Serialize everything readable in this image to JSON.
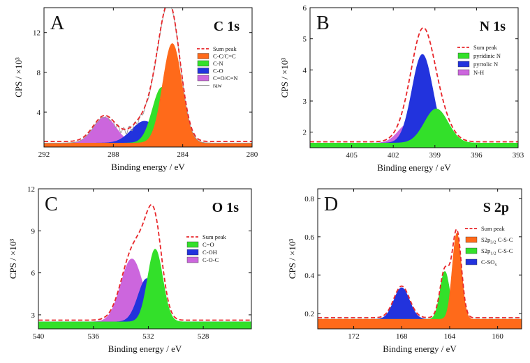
{
  "chart_data": [
    {
      "type": "line",
      "letter": "A",
      "title": "C 1s",
      "xlabel": "Binding energy / eV",
      "ylabel": "CPS / ×10³",
      "xlim": [
        292,
        280
      ],
      "ylim": [
        0.5,
        14.5
      ],
      "xticks": [
        "292",
        "288",
        "284",
        "280"
      ],
      "xtick_values": [
        292,
        288,
        284,
        280
      ],
      "yticks": [
        "4",
        "8",
        "12"
      ],
      "ytick_values": [
        4,
        8,
        12
      ],
      "baseline": 0.9,
      "series": [
        {
          "name": "Sum peak",
          "kind": "sum",
          "color": "#e8262a"
        },
        {
          "name": "C-C/C=C",
          "color": "#ff6a1a",
          "center": 284.6,
          "amp": 10.0
        },
        {
          "name": "C-N",
          "color": "#33e02a",
          "center": 285.2,
          "amp": 5.6
        },
        {
          "name": "C-O",
          "color": "#2233dd",
          "center": 286.2,
          "amp": 2.2
        },
        {
          "name": "C=O/C=N",
          "color": "#cc66dd",
          "center": 288.5,
          "amp": 2.6
        },
        {
          "name": "raw",
          "kind": "raw",
          "color": "#999999"
        }
      ],
      "legend": "right",
      "grid": false
    },
    {
      "type": "line",
      "letter": "B",
      "title": "N 1s",
      "xlabel": "Binding energy / eV",
      "ylabel": "CPS / ×10³",
      "xlim": [
        408,
        393
      ],
      "ylim": [
        1.5,
        6
      ],
      "xticks": [
        "405",
        "402",
        "399",
        "396",
        "393"
      ],
      "xtick_values": [
        405,
        402,
        399,
        396,
        393
      ],
      "yticks": [
        "2",
        "3",
        "4",
        "5",
        "6"
      ],
      "ytick_values": [
        2,
        3,
        4,
        5,
        6
      ],
      "baseline": 1.65,
      "series": [
        {
          "name": "Sum peak",
          "kind": "sum",
          "color": "#e8262a"
        },
        {
          "name": "pyridinic N",
          "color": "#33e02a",
          "center": 398.9,
          "amp": 1.1
        },
        {
          "name": "pyrrolic N",
          "color": "#2233dd",
          "center": 399.9,
          "amp": 2.85
        },
        {
          "name": "N-H",
          "color": "#cc66dd",
          "center": 400.9,
          "amp": 0.62
        }
      ],
      "legend": "top-right",
      "grid": false
    },
    {
      "type": "line",
      "letter": "C",
      "title": "O 1s",
      "xlabel": "Binding energy / eV",
      "ylabel": "CPS / ×10³",
      "xlim": [
        540,
        524.5
      ],
      "ylim": [
        2,
        12
      ],
      "xticks": [
        "540",
        "536",
        "532",
        "528"
      ],
      "xtick_values": [
        540,
        536,
        532,
        528
      ],
      "yticks": [
        "3",
        "6",
        "9",
        "12"
      ],
      "ytick_values": [
        3,
        6,
        9,
        12
      ],
      "baseline": 2.5,
      "series": [
        {
          "name": "Sum peak",
          "kind": "sum",
          "color": "#e8262a"
        },
        {
          "name": "C=O",
          "color": "#33e02a",
          "center": 531.5,
          "amp": 5.2
        },
        {
          "name": "C-OH",
          "color": "#2233dd",
          "center": 532.1,
          "amp": 3.1
        },
        {
          "name": "C-O-C",
          "color": "#cc66dd",
          "center": 533.2,
          "amp": 4.5
        }
      ],
      "legend": "right",
      "grid": false
    },
    {
      "type": "line",
      "letter": "D",
      "title": "S 2p",
      "xlabel": "Binding energy / eV",
      "ylabel": "CPS / ×10³",
      "xlim": [
        175,
        158
      ],
      "ylim": [
        0.12,
        0.85
      ],
      "xticks": [
        "172",
        "168",
        "164",
        "160"
      ],
      "xtick_values": [
        172,
        168,
        164,
        160
      ],
      "yticks": [
        "0.2",
        "0.4",
        "0.6",
        "0.8"
      ],
      "ytick_values": [
        0.2,
        0.4,
        0.6,
        0.8
      ],
      "baseline": 0.17,
      "series": [
        {
          "name": "Sum peak",
          "kind": "sum",
          "color": "#e8262a"
        },
        {
          "name": "S2p3/2 C-S-C",
          "label_main": "S2p",
          "label_sub": "3/2",
          "label_rest": " C-S-C",
          "color": "#ff6a1a",
          "center": 163.4,
          "amp": 0.45
        },
        {
          "name": "S2p1/2 C-S-C",
          "label_main": "S2p",
          "label_sub": "1/2",
          "label_rest": " C-S-C",
          "color": "#33e02a",
          "center": 164.4,
          "amp": 0.25
        },
        {
          "name": "C-SOx",
          "label_main": "C-SO",
          "label_sub": "x",
          "label_rest": "",
          "color": "#2233dd",
          "center": 168.0,
          "amp": 0.165
        }
      ],
      "legend": "right",
      "grid": false
    }
  ]
}
